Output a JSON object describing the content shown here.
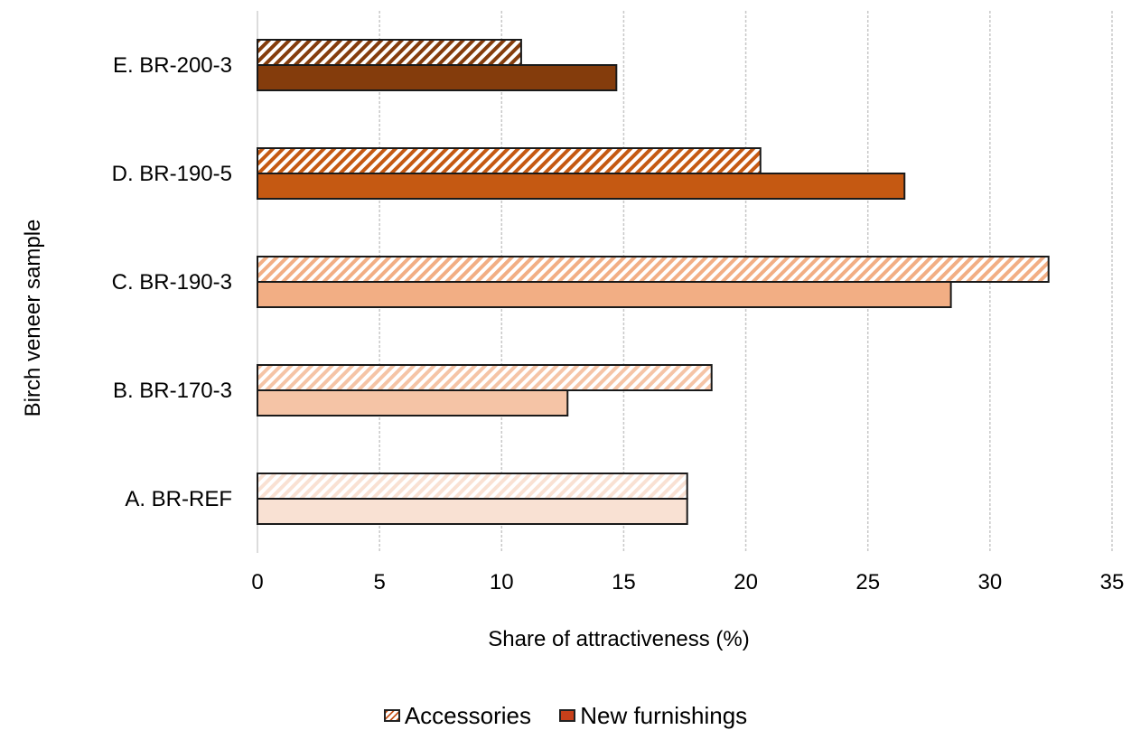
{
  "chart_data": {
    "type": "bar",
    "orientation": "horizontal",
    "categories": [
      "A. BR-REF",
      "B. BR-170-3",
      "C. BR-190-3",
      "D. BR-190-5",
      "E. BR-200-3"
    ],
    "series": [
      {
        "name": "Accessories",
        "values": [
          17.6,
          18.6,
          32.4,
          20.6,
          10.8
        ],
        "pattern": "diagonal-hatch"
      },
      {
        "name": "New furnishings",
        "values": [
          17.6,
          12.7,
          28.4,
          26.5,
          14.7
        ],
        "pattern": "solid"
      }
    ],
    "category_colors": [
      "#f9e1d3",
      "#f5c4a6",
      "#f2ae84",
      "#c55912",
      "#843c0c"
    ],
    "xlabel": "Share of attractiveness (%)",
    "ylabel": "Birch veneer sample",
    "xlim": [
      0,
      35
    ],
    "xticks": [
      0,
      5,
      10,
      15,
      20,
      25,
      30,
      35
    ],
    "grid": "vertical-dashed",
    "legend": "bottom-center"
  },
  "legend": {
    "accessories": "Accessories",
    "new_furnishings": "New furnishings",
    "new_color": "#c8401a"
  }
}
